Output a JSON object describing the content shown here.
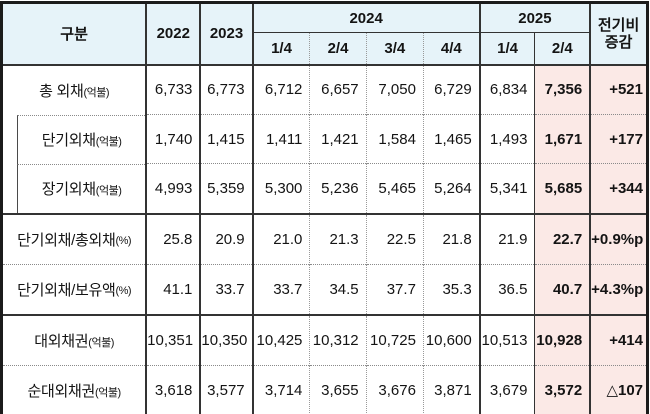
{
  "table": {
    "colors": {
      "header_bg": "#e6f3f9",
      "highlight_bg": "#fbe9e6"
    },
    "header": {
      "category": "구분",
      "year2022": "2022",
      "year2023": "2023",
      "year2024": "2024",
      "year2025": "2025",
      "quarters_2024": [
        "1/4",
        "2/4",
        "3/4",
        "4/4"
      ],
      "quarters_2025": [
        "1/4",
        "2/4"
      ],
      "change_line1": "전기비",
      "change_line2": "증감"
    },
    "rows": [
      {
        "label": "총 외채",
        "unit": "(억불)",
        "indent": false,
        "sep": "none",
        "values": [
          "6,733",
          "6,773",
          "6,712",
          "6,657",
          "7,050",
          "6,729",
          "6,834",
          "7,356",
          "+521"
        ]
      },
      {
        "label": "단기외채",
        "unit": "(억불)",
        "indent": true,
        "sep": "dotted",
        "values": [
          "1,740",
          "1,415",
          "1,411",
          "1,421",
          "1,584",
          "1,465",
          "1,493",
          "1,671",
          "+177"
        ]
      },
      {
        "label": "장기외채",
        "unit": "(억불)",
        "indent": true,
        "sep": "dotted",
        "values": [
          "4,993",
          "5,359",
          "5,300",
          "5,236",
          "5,465",
          "5,264",
          "5,341",
          "5,685",
          "+344"
        ]
      },
      {
        "label": "단기외채/총외채",
        "unit": "(%)",
        "indent": false,
        "sep": "solid",
        "values": [
          "25.8",
          "20.9",
          "21.0",
          "21.3",
          "22.5",
          "21.8",
          "21.9",
          "22.7",
          "+0.9%p"
        ]
      },
      {
        "label": "단기외채/보유액",
        "unit": "(%)",
        "indent": false,
        "sep": "dotted",
        "values": [
          "41.1",
          "33.7",
          "33.7",
          "34.5",
          "37.7",
          "35.3",
          "36.5",
          "40.7",
          "+4.3%p"
        ]
      },
      {
        "label": "대외채권",
        "unit": "(억불)",
        "indent": false,
        "sep": "solid",
        "values": [
          "10,351",
          "10,350",
          "10,425",
          "10,312",
          "10,725",
          "10,600",
          "10,513",
          "10,928",
          "+414"
        ]
      },
      {
        "label": "순대외채권",
        "unit": "(억불)",
        "indent": false,
        "sep": "dotted",
        "values": [
          "3,618",
          "3,577",
          "3,714",
          "3,655",
          "3,676",
          "3,871",
          "3,679",
          "3,572",
          "△107"
        ]
      }
    ]
  }
}
